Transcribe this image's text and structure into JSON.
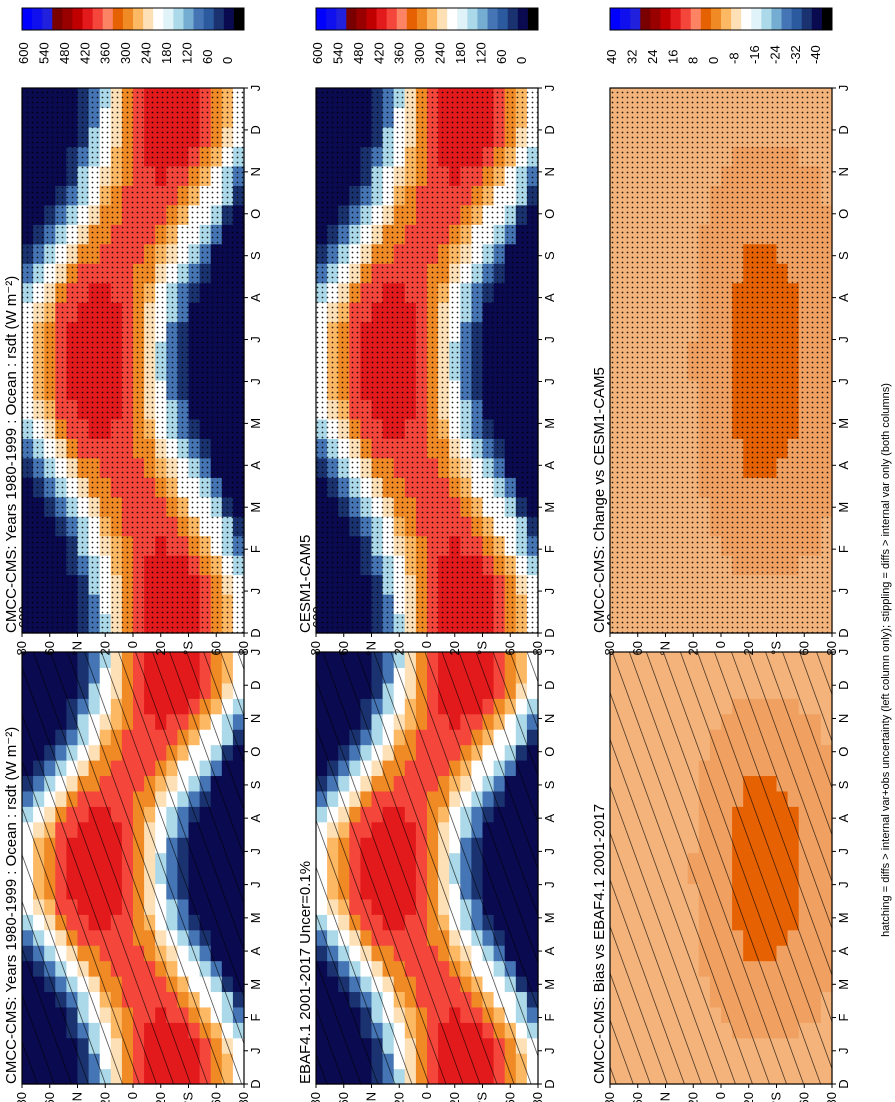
{
  "footnote": "hatching = diffs > internal var+obs uncertainty (left column only); stippling = diffs > internal var only (both columns)",
  "months": [
    "D",
    "J",
    "F",
    "M",
    "A",
    "M",
    "J",
    "J",
    "A",
    "S",
    "O",
    "N",
    "D",
    "J"
  ],
  "lat_ticks": [
    "80",
    "60",
    "°N",
    "20",
    "0",
    "20",
    "°S",
    "60",
    "80"
  ],
  "abs_colorbar": {
    "labels": [
      "600",
      "540",
      "480",
      "420",
      "360",
      "300",
      "240",
      "180",
      "120",
      "60",
      "0"
    ],
    "colors": [
      "#0000ff",
      "#1010ee",
      "#2020dd",
      "#7a0000",
      "#990000",
      "#c00000",
      "#e31a1c",
      "#f5463c",
      "#fc8464",
      "#e66101",
      "#f08a24",
      "#fdb863",
      "#fee0b6",
      "#ffffff",
      "#e0f3f8",
      "#abd9e9",
      "#74add1",
      "#4575b4",
      "#2c5a9e",
      "#1a3370",
      "#0a0a50",
      "#000000"
    ]
  },
  "diff_colorbar": {
    "labels": [
      "40",
      "32",
      "24",
      "16",
      "8",
      "0",
      "-8",
      "-16",
      "-24",
      "-32",
      "-40"
    ],
    "colors": [
      "#0000ff",
      "#1010ee",
      "#2020dd",
      "#7a0000",
      "#990000",
      "#c00000",
      "#e31a1c",
      "#f5463c",
      "#fc8464",
      "#e66101",
      "#f08a24",
      "#fdb863",
      "#fee0b6",
      "#ffffff",
      "#e0f3f8",
      "#abd9e9",
      "#74add1",
      "#4575b4",
      "#2c5a9e",
      "#1a3370",
      "#0a0a50",
      "#000000"
    ]
  },
  "panels": [
    {
      "title": "CMCC-CMS: Years 1980-1999 : Ocean : rsdt (W m⁻²)",
      "kind": "abs",
      "mark": "hatch"
    },
    {
      "title": "EBAF4.1 2001-2017 Uncer=0.1%",
      "kind": "abs",
      "mark": "hatch"
    },
    {
      "title": "CMCC-CMS: Bias vs EBAF4.1 2001-2017",
      "kind": "diff",
      "mark": "hatch"
    },
    {
      "title": "CMCC-CMS: Years 1980-1999 : Ocean : rsdt (W m⁻²)",
      "kind": "abs",
      "mark": "dots"
    },
    {
      "title": "CESM1-CAM5",
      "kind": "abs",
      "mark": "dots"
    },
    {
      "title": "CMCC-CMS: Change vs CESM1-CAM5",
      "kind": "diff",
      "mark": "dots"
    }
  ],
  "chart_data": {
    "type": "heatmap",
    "title": "",
    "xlabel": "",
    "ylabel": "",
    "x": [
      "D",
      "J",
      "F",
      "M",
      "A",
      "M",
      "J",
      "J",
      "A",
      "S",
      "O",
      "N",
      "D",
      "J"
    ],
    "y_range": [
      -90,
      90
    ],
    "abs_range": [
      0,
      600
    ],
    "diff_range": [
      -40,
      40
    ]
  }
}
